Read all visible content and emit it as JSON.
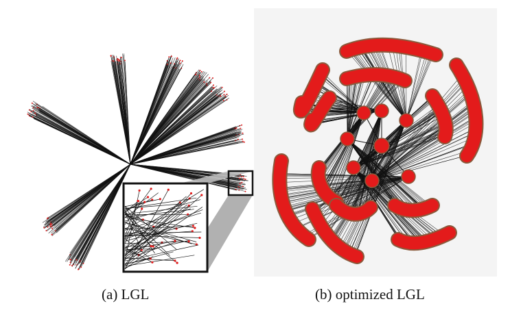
{
  "figure": {
    "captions": {
      "a": "(a)  LGL",
      "b": "(b)  optimized LGL"
    }
  },
  "colors": {
    "edge": "#111111",
    "node_red": "#e31b1b",
    "node_outline": "#8a5a3c",
    "panel_b_background": "#f4f4f4",
    "inset_frame": "#111111",
    "inset_connector": "#9a9a9a"
  }
}
